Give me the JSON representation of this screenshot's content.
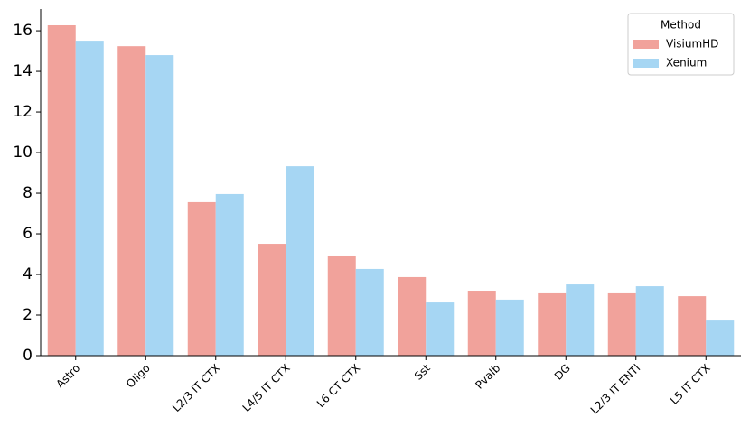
{
  "chart_data": {
    "type": "bar",
    "categories": [
      "Astro",
      "Oligo",
      "L2/3 IT CTX",
      "L4/5 IT CTX",
      "L6 CT CTX",
      "Sst",
      "Pvalb",
      "DG",
      "L2/3 IT ENTl",
      "L5 IT CTX"
    ],
    "series": [
      {
        "name": "VisiumHD",
        "color": "#f1a29b",
        "values": [
          16.27,
          15.24,
          7.56,
          5.51,
          4.89,
          3.87,
          3.2,
          3.07,
          3.07,
          2.93
        ]
      },
      {
        "name": "Xenium",
        "color": "#a6d6f3",
        "values": [
          15.51,
          14.8,
          7.96,
          9.33,
          4.27,
          2.62,
          2.76,
          3.51,
          3.42,
          1.73
        ]
      }
    ],
    "ylim": [
      0,
      17.07
    ],
    "yticks": [
      0,
      2,
      4,
      6,
      8,
      10,
      12,
      14,
      16
    ],
    "legend_title": "Method",
    "legend": "upper right",
    "grid": false
  }
}
